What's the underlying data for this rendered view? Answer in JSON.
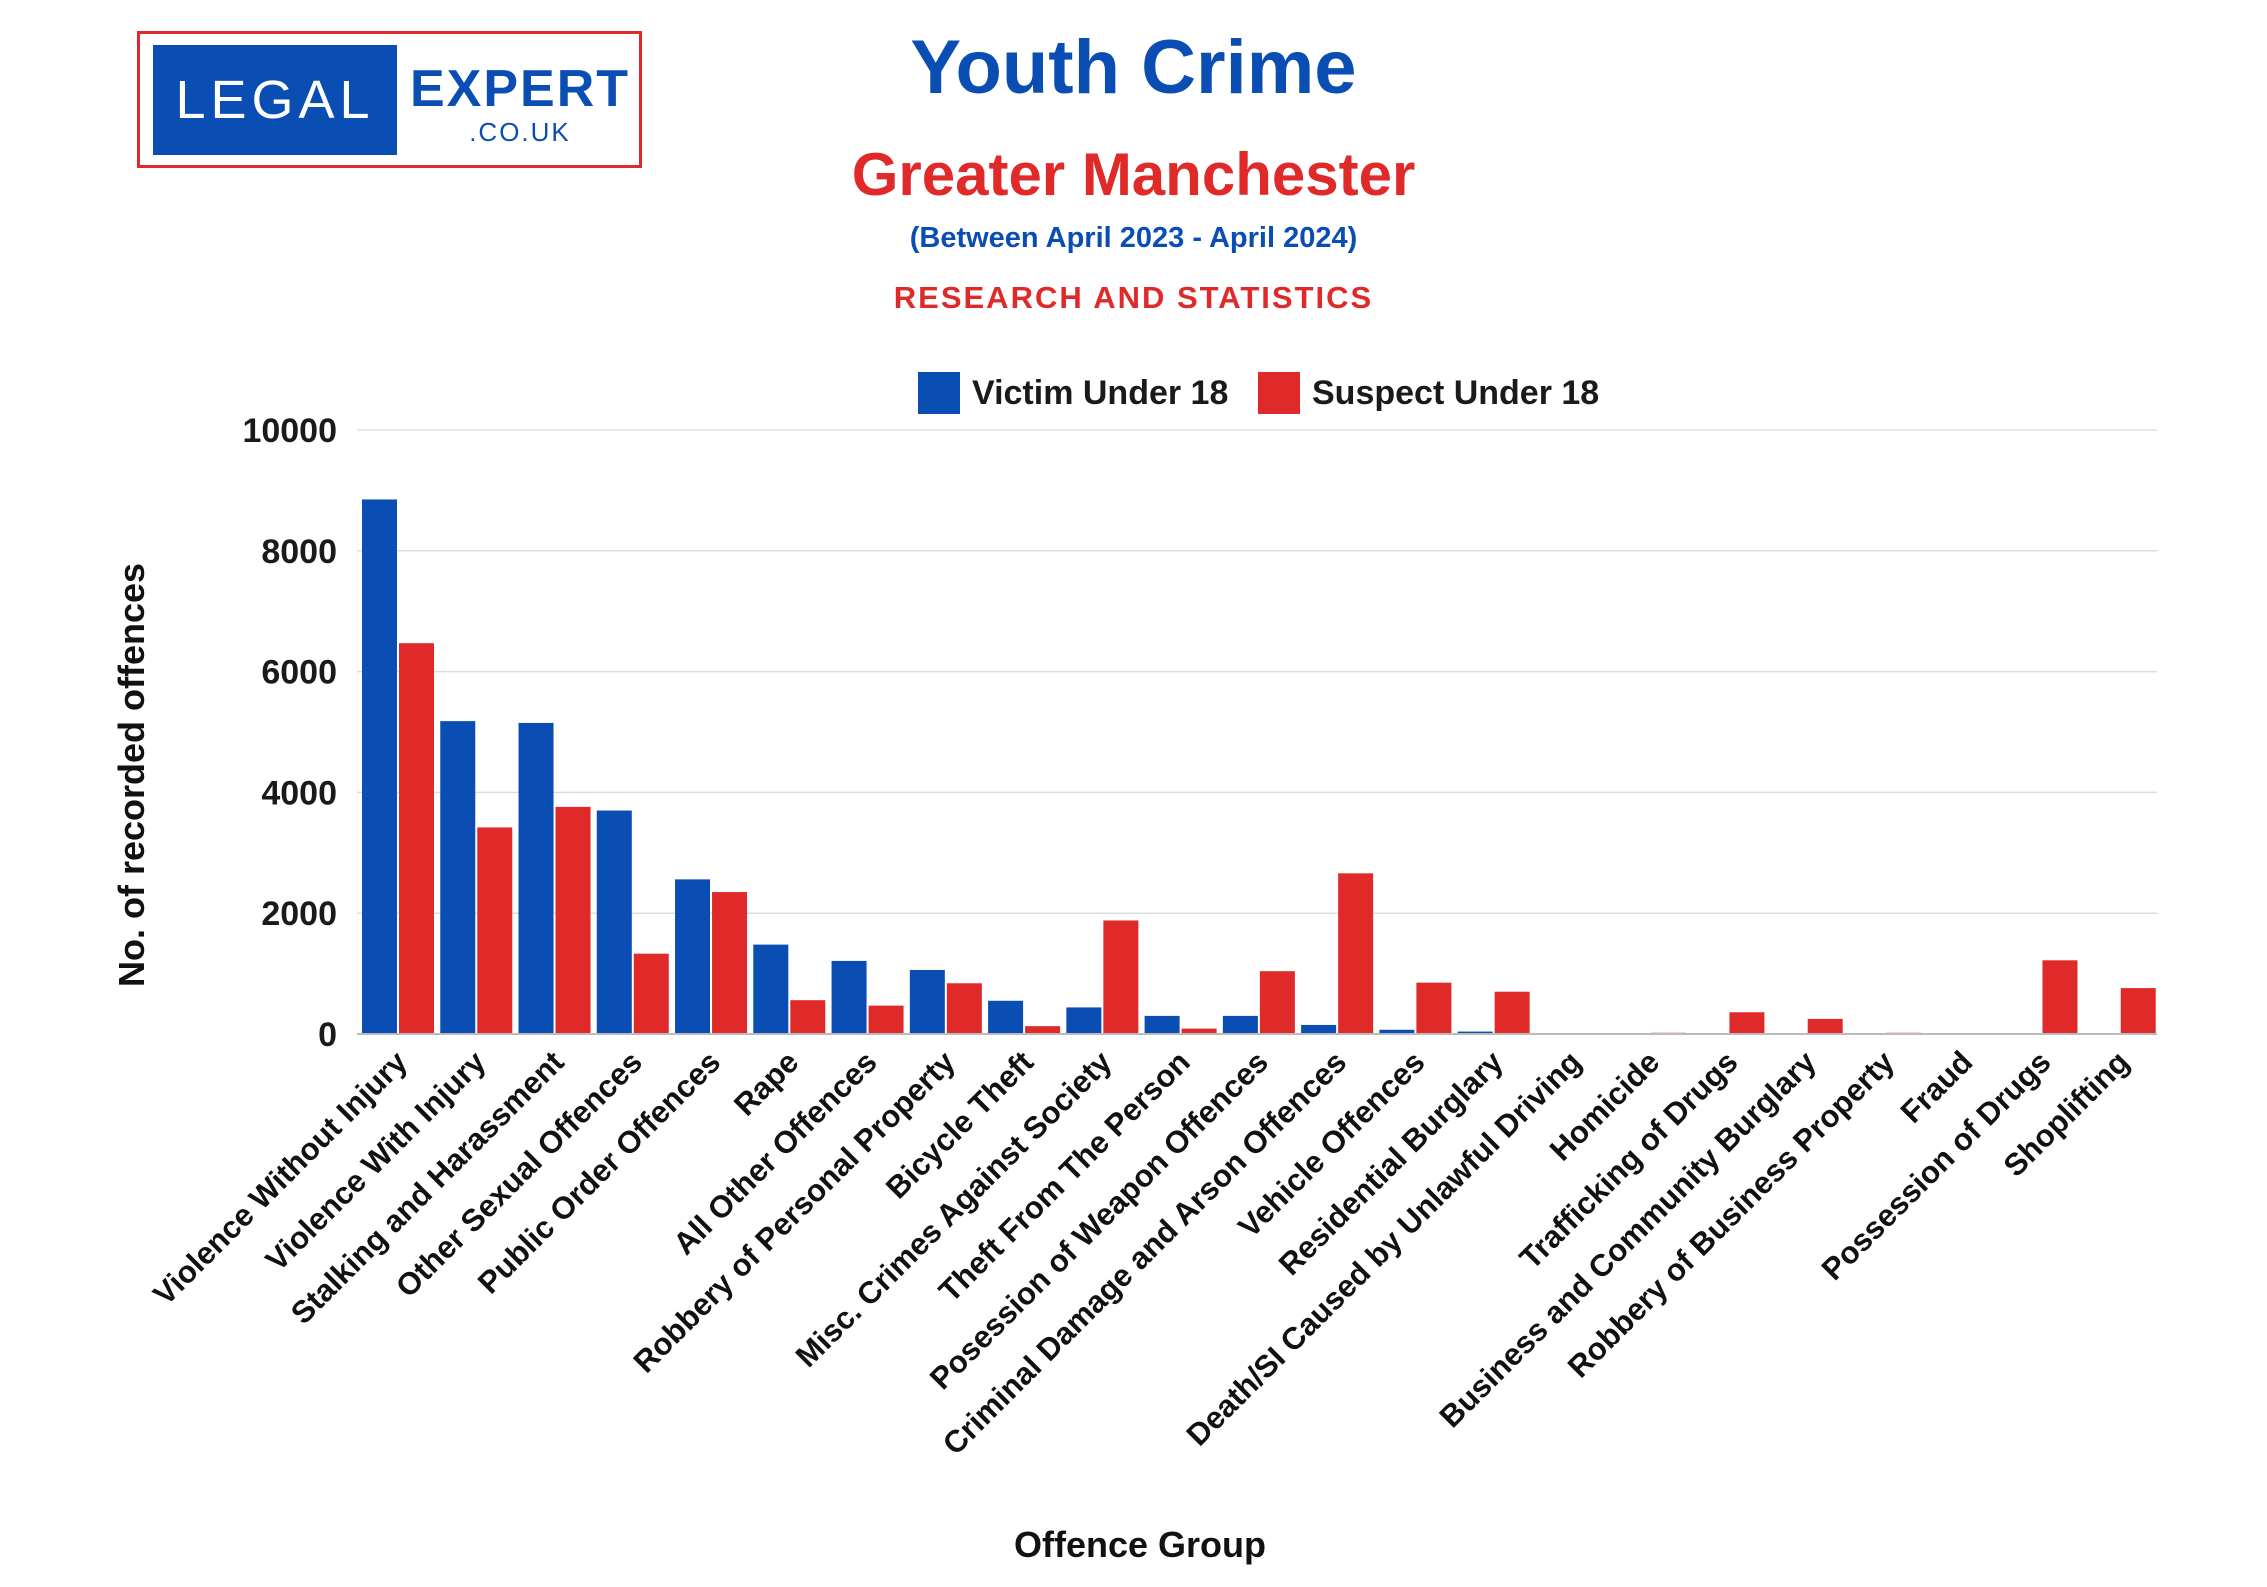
{
  "logo": {
    "left_text": "LEGAL",
    "right_text": "EXPERT",
    "sub_text": ".CO.UK"
  },
  "header": {
    "title": "Youth Crime",
    "subtitle": "Greater Manchester",
    "date_range": "(Between April 2023 - April 2024)",
    "tagline": "RESEARCH AND STATISTICS"
  },
  "colors": {
    "victim": "#0a4db3",
    "suspect": "#e02a2a",
    "title_blue": "#0a4db3",
    "title_red": "#e02a2a"
  },
  "chart_data": {
    "type": "bar",
    "xlabel": "Offence Group",
    "ylabel": "No. of recorded offences",
    "ylim": [
      0,
      10000
    ],
    "yticks": [
      0,
      2000,
      4000,
      6000,
      8000,
      10000
    ],
    "grid": true,
    "legend_position": "top-center",
    "categories": [
      "Violence Without Injury",
      "Violence With Injury",
      "Stalking and Harassment",
      "Other Sexual Offences",
      "Public Order Offences",
      "Rape",
      "All Other Offences",
      "Robbery of Personal Property",
      "Bicycle Theft",
      "Misc. Crimes Against Society",
      "Theft From The Person",
      "Posession of Weapon Offences",
      "Criminal Damage and Arson Offences",
      "Vehicle Offences",
      "Residential Burglary",
      "Death/SI Caused by Unlawful Driving",
      "Homicide",
      "Trafficking of Drugs",
      "Business and Community Burglary",
      "Robbery of Business Property",
      "Fraud",
      "Possession of Drugs",
      "Shoplifting"
    ],
    "series": [
      {
        "name": "Victim Under 18",
        "values": [
          8850,
          5180,
          5150,
          3700,
          2560,
          1480,
          1210,
          1060,
          550,
          440,
          300,
          300,
          150,
          70,
          40,
          10,
          10,
          10,
          0,
          0,
          10,
          0,
          0
        ]
      },
      {
        "name": "Suspect Under 18",
        "values": [
          6470,
          3420,
          3760,
          1330,
          2350,
          560,
          470,
          840,
          130,
          1880,
          90,
          1040,
          2660,
          850,
          700,
          0,
          20,
          360,
          250,
          20,
          0,
          1220,
          760
        ]
      }
    ]
  }
}
